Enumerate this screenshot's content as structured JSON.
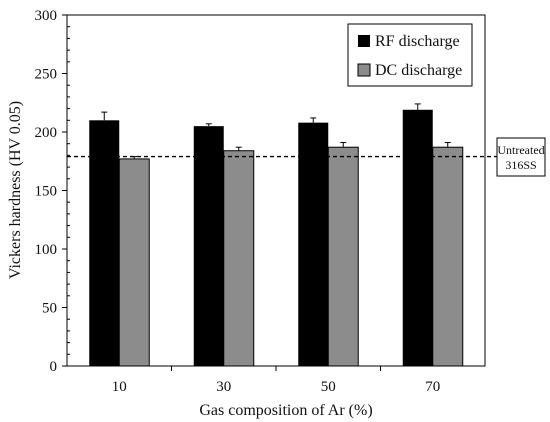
{
  "chart_data": {
    "type": "bar",
    "title": "",
    "xlabel": "Gas composition of Ar (%)",
    "ylabel": "Vickers hardness (HV 0.05)",
    "categories": [
      "10",
      "30",
      "50",
      "70"
    ],
    "ylim": [
      0,
      300
    ],
    "yticks": [
      0,
      50,
      100,
      150,
      200,
      250,
      300
    ],
    "series": [
      {
        "name": "RF discharge",
        "color": "#000000",
        "values": [
          210,
          205,
          208,
          219
        ],
        "errors": [
          7,
          2,
          4,
          5
        ]
      },
      {
        "name": "DC discharge",
        "color": "#8c8c8c",
        "values": [
          177,
          184,
          187,
          187
        ],
        "errors": [
          2,
          3,
          4,
          4
        ]
      }
    ],
    "reference_line": {
      "value": 179,
      "label_lines": [
        "Untreated",
        "316SS"
      ],
      "style": "dashed"
    },
    "legend_position": "top-right",
    "grid": false
  }
}
